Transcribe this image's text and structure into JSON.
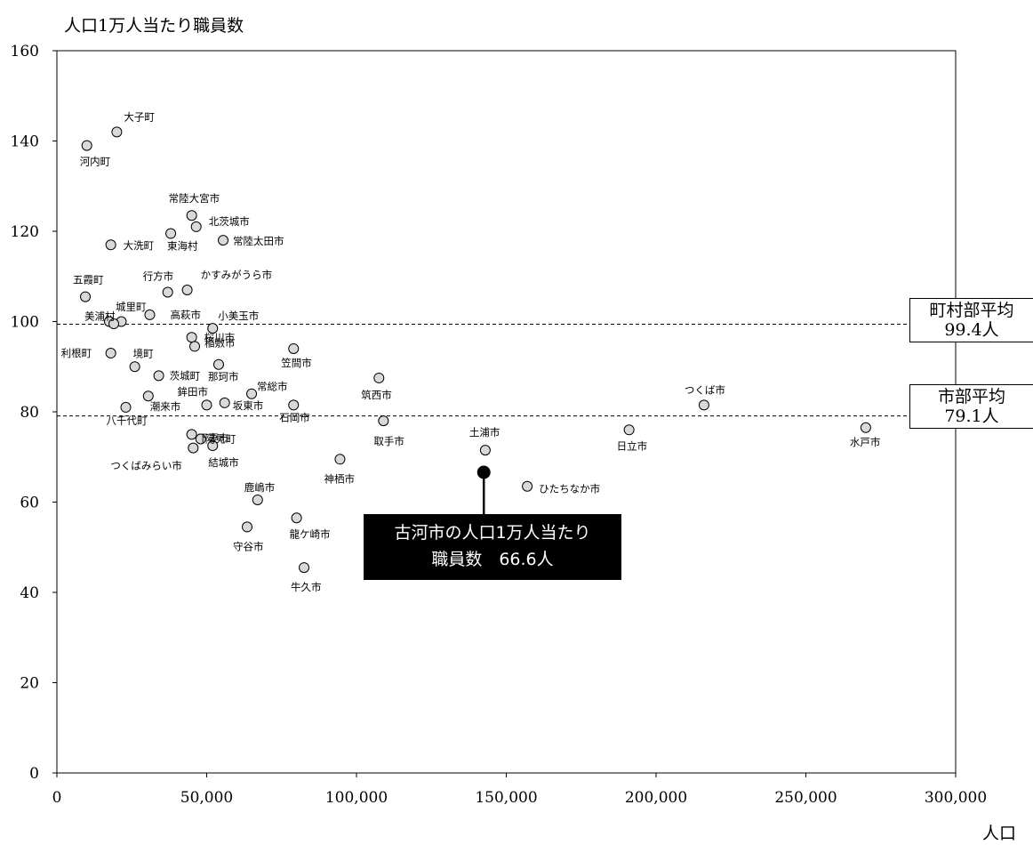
{
  "chart_data": {
    "type": "scatter",
    "ylabel": "人口1万人当たり職員数",
    "xlabel": "人口",
    "xlim": [
      0,
      300000
    ],
    "ylim": [
      0,
      160
    ],
    "x_ticks": [
      "0",
      "50,000",
      "100,000",
      "150,000",
      "200,000",
      "250,000",
      "300,000"
    ],
    "y_ticks": [
      "0",
      "20",
      "40",
      "60",
      "80",
      "100",
      "120",
      "140",
      "160"
    ],
    "grid": false,
    "points": [
      {
        "name": "大子町",
        "x": 20000,
        "y": 142
      },
      {
        "name": "河内町",
        "x": 10000,
        "y": 139
      },
      {
        "name": "常陸大宮市",
        "x": 45000,
        "y": 123.5
      },
      {
        "name": "北茨城市",
        "x": 46500,
        "y": 121
      },
      {
        "name": "東海村",
        "x": 38000,
        "y": 119.5
      },
      {
        "name": "大洗町",
        "x": 18000,
        "y": 117
      },
      {
        "name": "常陸太田市",
        "x": 55500,
        "y": 118
      },
      {
        "name": "行方市",
        "x": 37000,
        "y": 106.5
      },
      {
        "name": "かすみがうら市",
        "x": 43500,
        "y": 107
      },
      {
        "name": "五霞町",
        "x": 9500,
        "y": 105.5
      },
      {
        "name": "高萩市",
        "x": 31000,
        "y": 101.5
      },
      {
        "name": "美浦村",
        "x": 17500,
        "y": 100
      },
      {
        "name": "",
        "x": 21500,
        "y": 100
      },
      {
        "name": "小美玉市",
        "x": 52000,
        "y": 98.5
      },
      {
        "name": "桜川市",
        "x": 45000,
        "y": 96.5
      },
      {
        "name": "稲敷市",
        "x": 46000,
        "y": 94.5
      },
      {
        "name": "笠間市",
        "x": 79000,
        "y": 94
      },
      {
        "name": "利根町",
        "x": 18000,
        "y": 93
      },
      {
        "name": "城里町",
        "x": 19000,
        "y": 99.5
      },
      {
        "name": "境町",
        "x": 26000,
        "y": 90
      },
      {
        "name": "那珂市",
        "x": 54000,
        "y": 90.5
      },
      {
        "name": "茨城町",
        "x": 34000,
        "y": 88
      },
      {
        "name": "筑西市",
        "x": 107500,
        "y": 87.5
      },
      {
        "name": "常総市",
        "x": 65000,
        "y": 84
      },
      {
        "name": "潮来市",
        "x": 30500,
        "y": 83.5
      },
      {
        "name": "鉾田市",
        "x": 50000,
        "y": 81.5
      },
      {
        "name": "坂東市",
        "x": 56000,
        "y": 82
      },
      {
        "name": "石岡市",
        "x": 79000,
        "y": 81.5
      },
      {
        "name": "つくば市",
        "x": 216000,
        "y": 81.5
      },
      {
        "name": "八千代町",
        "x": 23000,
        "y": 81
      },
      {
        "name": "取手市",
        "x": 109000,
        "y": 78
      },
      {
        "name": "水戸市",
        "x": 270000,
        "y": 76.5
      },
      {
        "name": "日立市",
        "x": 191000,
        "y": 76
      },
      {
        "name": "下妻市",
        "x": 45000,
        "y": 75
      },
      {
        "name": "阿見町",
        "x": 48000,
        "y": 74
      },
      {
        "name": "結城市",
        "x": 52000,
        "y": 72.5
      },
      {
        "name": "つくばみらい市",
        "x": 45500,
        "y": 72
      },
      {
        "name": "土浦市",
        "x": 143000,
        "y": 71.5
      },
      {
        "name": "神栖市",
        "x": 94500,
        "y": 69.5
      },
      {
        "name": "ひたちなか市",
        "x": 157000,
        "y": 63.5
      },
      {
        "name": "鹿嶋市",
        "x": 67000,
        "y": 60.5
      },
      {
        "name": "龍ケ崎市",
        "x": 80000,
        "y": 56.5
      },
      {
        "name": "守谷市",
        "x": 63500,
        "y": 54.5
      },
      {
        "name": "牛久市",
        "x": 82500,
        "y": 45.5
      }
    ],
    "highlight": {
      "name": "古河市",
      "x": 142500,
      "y": 66.6
    },
    "reference_lines": [
      {
        "label": "町村部平均",
        "value_text": "99.4人",
        "y": 99.4
      },
      {
        "label": "市部平均",
        "value_text": "79.1人",
        "y": 79.1
      }
    ],
    "callout": {
      "line1": "古河市の人口1万人当たり",
      "line2": "職員数　66.6人"
    }
  },
  "colors": {
    "point_fill": "#d9d9d9",
    "point_stroke": "#000000",
    "highlight": "#000000",
    "callout_bg": "#000000",
    "callout_text": "#ffffff"
  }
}
